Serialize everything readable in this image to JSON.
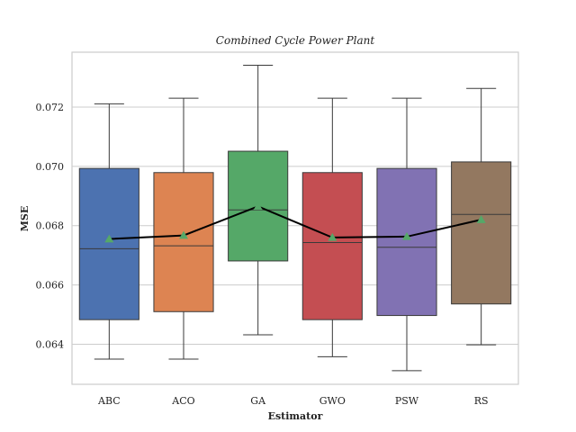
{
  "chart_data": {
    "type": "box",
    "title": "Combined Cycle Power Plant",
    "xlabel": "Estimator",
    "ylabel": "MSE",
    "ylim": [
      0.06265,
      0.07385
    ],
    "yticks": [
      0.064,
      0.066,
      0.068,
      0.07,
      0.072
    ],
    "ytick_labels": [
      "0.064",
      "0.066",
      "0.068",
      "0.070",
      "0.072"
    ],
    "grid": true,
    "categories": [
      "ABC",
      "ACO",
      "GA",
      "GWO",
      "PSW",
      "RS"
    ],
    "colors": [
      "#4c72b0",
      "#dd8452",
      "#55a868",
      "#c44e52",
      "#8172b3",
      "#937860"
    ],
    "mean_marker_color": "#55a868",
    "mean_line_color": "#000000",
    "boxes": [
      {
        "category": "ABC",
        "whisker_low": 0.0635,
        "q1": 0.06483,
        "median": 0.06722,
        "q3": 0.06993,
        "whisker_high": 0.07211,
        "mean": 0.06755
      },
      {
        "category": "ACO",
        "whisker_low": 0.0635,
        "q1": 0.0651,
        "median": 0.06732,
        "q3": 0.06979,
        "whisker_high": 0.0723,
        "mean": 0.06767
      },
      {
        "category": "GA",
        "whisker_low": 0.06432,
        "q1": 0.06681,
        "median": 0.06853,
        "q3": 0.07051,
        "whisker_high": 0.07341,
        "mean": 0.06865
      },
      {
        "category": "GWO",
        "whisker_low": 0.06358,
        "q1": 0.06483,
        "median": 0.06743,
        "q3": 0.06979,
        "whisker_high": 0.0723,
        "mean": 0.0676
      },
      {
        "category": "PSW",
        "whisker_low": 0.06311,
        "q1": 0.06497,
        "median": 0.06727,
        "q3": 0.06993,
        "whisker_high": 0.0723,
        "mean": 0.06763
      },
      {
        "category": "RS",
        "whisker_low": 0.06398,
        "q1": 0.06536,
        "median": 0.06838,
        "q3": 0.07015,
        "whisker_high": 0.07263,
        "mean": 0.0682
      }
    ]
  }
}
